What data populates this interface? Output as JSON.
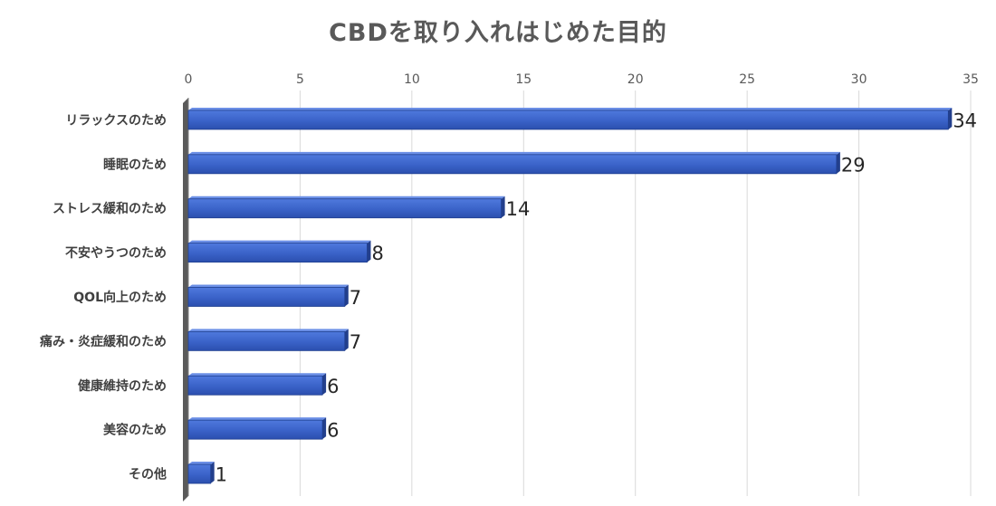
{
  "chart_data": {
    "type": "bar",
    "orientation": "horizontal",
    "title": "CBDを取り入れはじめた目的",
    "categories": [
      "リラックスのため",
      "睡眠のため",
      "ストレス緩和のため",
      "不安やうつのため",
      "QOL向上のため",
      "痛み・炎症緩和のため",
      "健康維持のため",
      "美容のため",
      "その他"
    ],
    "values": [
      34,
      29,
      14,
      8,
      7,
      7,
      6,
      6,
      1
    ],
    "xlim": [
      0,
      35
    ],
    "x_ticks": [
      0,
      5,
      10,
      15,
      20,
      25,
      30,
      35
    ],
    "x_axis_position": "top",
    "grid": true,
    "data_labels": true,
    "bar_color": "#3a62c8",
    "bar_edge_color": "#1f3f8f",
    "axis_color": "#595959"
  }
}
